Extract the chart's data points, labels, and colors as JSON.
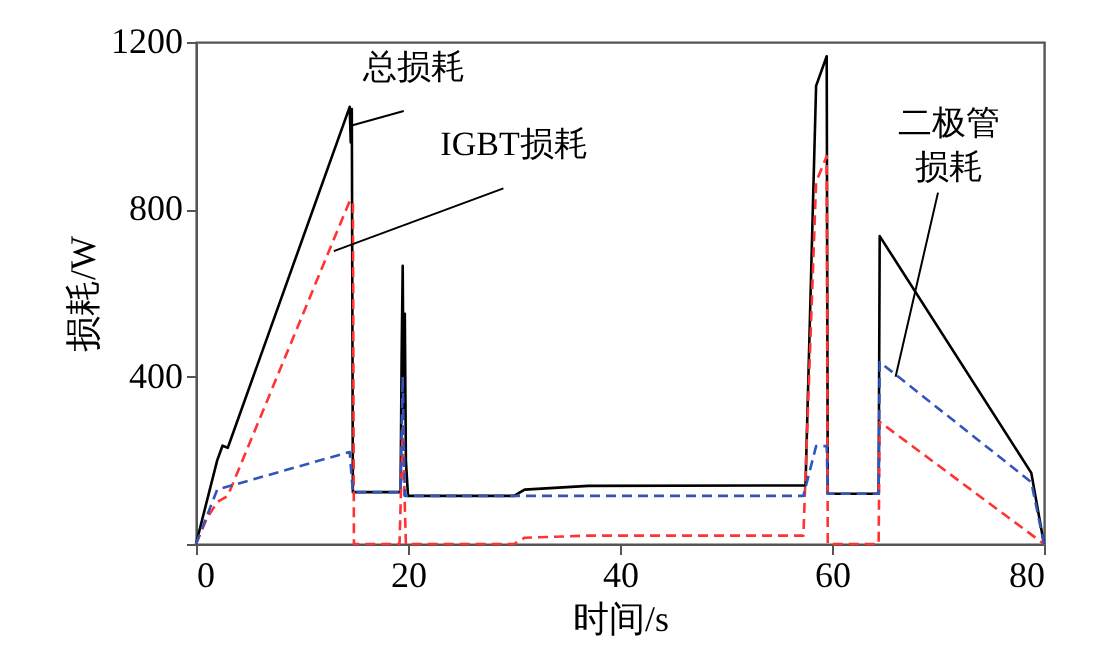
{
  "chart_data": {
    "type": "line",
    "xlabel": "时间/s",
    "ylabel": "损耗/W",
    "xlim": [
      0,
      80
    ],
    "xticks": [
      0,
      20,
      40,
      60,
      80
    ],
    "ylim": [
      0,
      1200
    ],
    "yticks": [
      {
        "value": 0,
        "label": null
      },
      400,
      800,
      1200
    ],
    "grid": false,
    "marker": "none",
    "series": [
      {
        "color": "#000000",
        "line_style": "solid",
        "x": [
          0,
          2,
          2.5,
          3,
          14.5,
          14.6,
          14.7,
          14.8,
          19.3,
          19.4,
          19.5,
          19.6,
          19.7,
          19.8,
          20,
          30,
          31,
          37,
          57.5,
          58.5,
          59.5,
          59.6,
          64.4,
          64.5,
          78.8,
          80
        ],
        "values": [
          0,
          200,
          235,
          230,
          1045,
          960,
          1040,
          124,
          124,
          450,
          665,
          300,
          550,
          200,
          115,
          115,
          130,
          139,
          140,
          1095,
          1166,
          120,
          120,
          736,
          170,
          0
        ]
      },
      {
        "color": "#ff3333",
        "line_style": "dashed",
        "x": [
          0,
          1,
          2,
          3,
          14.5,
          14.8,
          14.9,
          19.2,
          19.5,
          19.8,
          20,
          30,
          31,
          37,
          57.3,
          58.5,
          59.5,
          59.6,
          64.4,
          64.5,
          80
        ],
        "values": [
          0,
          60,
          100,
          115,
          820,
          820,
          0,
          0,
          277,
          0,
          0,
          0,
          15,
          20,
          20,
          865,
          927,
          0,
          0,
          292,
          0
        ]
      },
      {
        "color": "#3355bb",
        "line_style": "dashed",
        "x": [
          0,
          2,
          14.5,
          14.8,
          19.3,
          19.5,
          19.7,
          20,
          57.3,
          58.5,
          59.5,
          59.6,
          64.4,
          64.5,
          78.8,
          80
        ],
        "values": [
          0,
          130,
          220,
          124,
          124,
          400,
          115,
          115,
          115,
          234,
          234,
          120,
          120,
          435,
          148,
          0
        ]
      }
    ],
    "annotations": [
      {
        "text": "总损耗",
        "x": 14.6,
        "y": 1000
      },
      {
        "text": "IGBT损耗",
        "x": 13,
        "y": 700
      },
      {
        "text": "二极管损耗",
        "x": 66,
        "y": 400
      }
    ]
  }
}
